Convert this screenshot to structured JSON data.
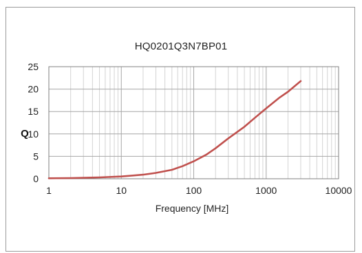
{
  "chart_data": {
    "type": "line",
    "title": "HQ0201Q3N7BP01",
    "xlabel": "Frequency [MHz]",
    "ylabel": "Q",
    "x_scale": "log",
    "xlim": [
      1,
      10000
    ],
    "ylim": [
      0,
      25
    ],
    "x_ticks": [
      1,
      10,
      100,
      1000,
      10000
    ],
    "x_tick_labels": [
      "1",
      "10",
      "100",
      "1000",
      "10000"
    ],
    "y_ticks": [
      0,
      5,
      10,
      15,
      20,
      25
    ],
    "y_tick_labels": [
      "0",
      "5",
      "10",
      "15",
      "20",
      "25"
    ],
    "grid": true,
    "legend": "none",
    "series": [
      {
        "color": "#c0504d",
        "x": [
          1,
          2,
          5,
          10,
          20,
          30,
          50,
          70,
          100,
          150,
          200,
          300,
          500,
          700,
          1000,
          1500,
          2000,
          3000
        ],
        "y": [
          0.1,
          0.15,
          0.3,
          0.5,
          0.9,
          1.3,
          2.0,
          2.8,
          3.9,
          5.4,
          6.8,
          9.0,
          11.6,
          13.6,
          15.7,
          18.0,
          19.4,
          21.8
        ]
      }
    ]
  }
}
